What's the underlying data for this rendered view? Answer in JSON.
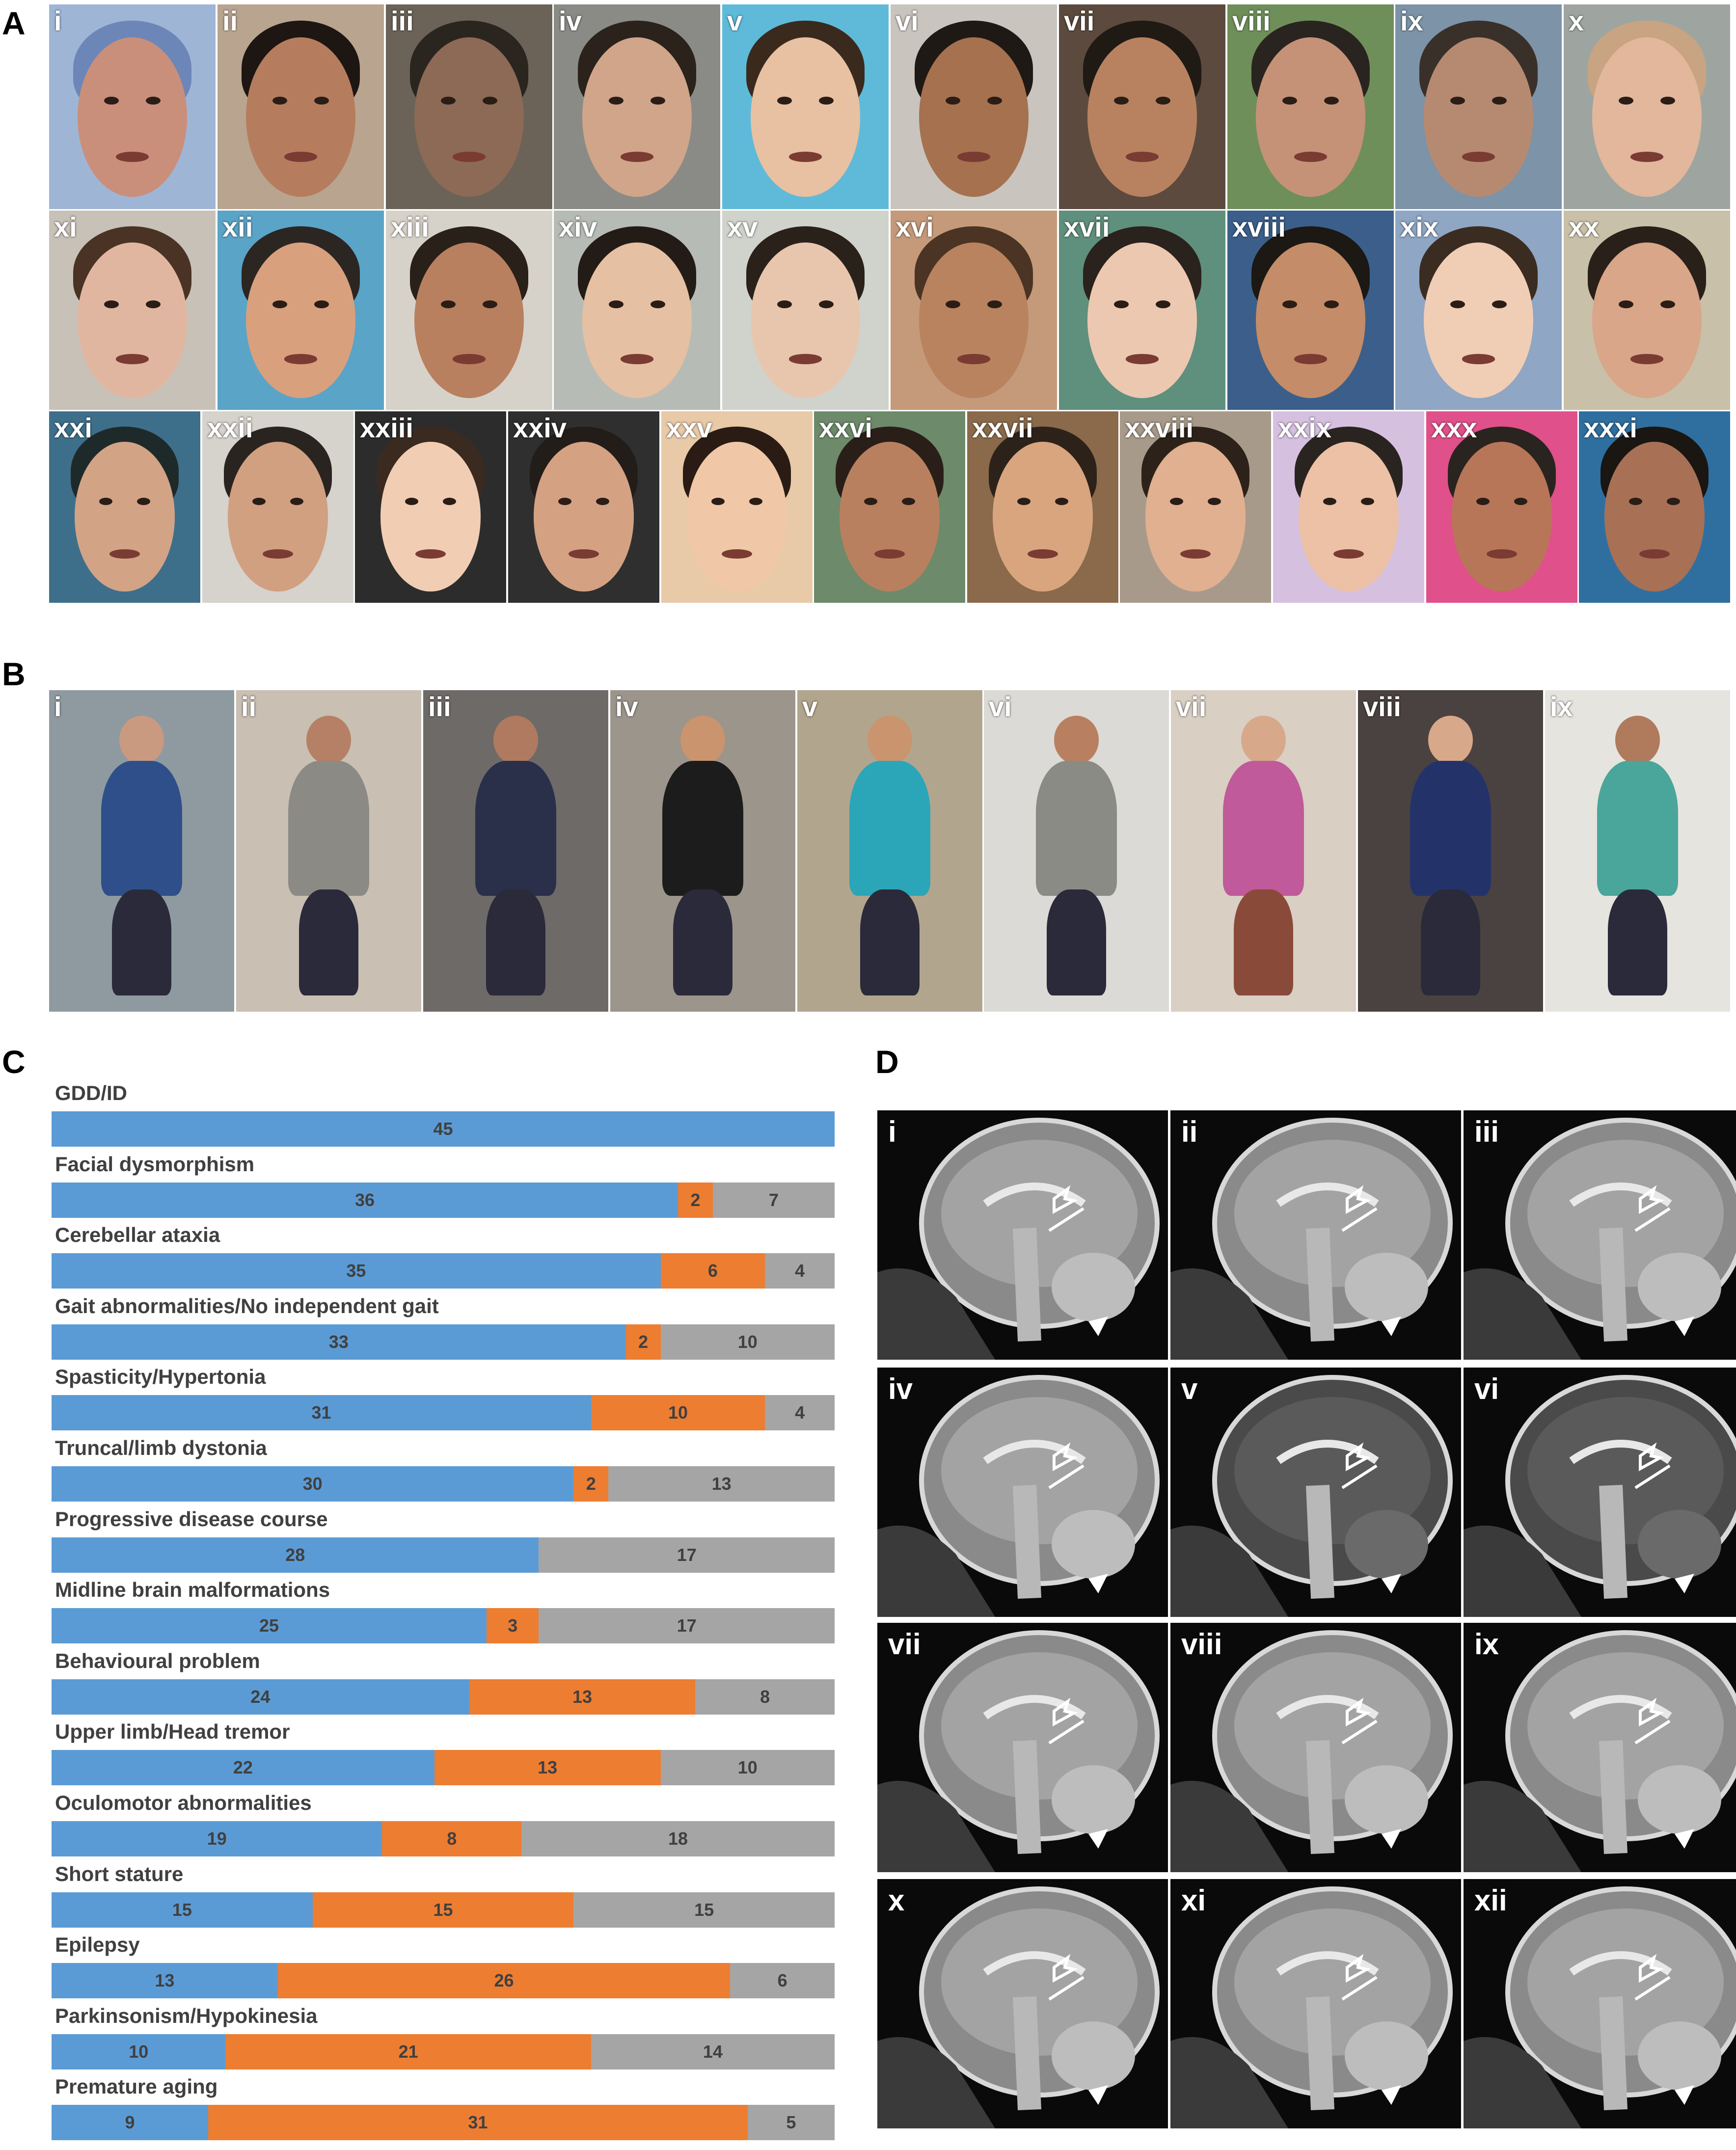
{
  "panels": {
    "a": "A",
    "b": "B",
    "c": "C",
    "d": "D"
  },
  "panel_a": {
    "labels": [
      "i",
      "ii",
      "iii",
      "iv",
      "v",
      "vi",
      "vii",
      "viii",
      "ix",
      "x",
      "xi",
      "xii",
      "xiii",
      "xiv",
      "xv",
      "xvi",
      "xvii",
      "xviii",
      "xix",
      "xx",
      "xxi",
      "xxii",
      "xxiii",
      "xxiv",
      "xxv",
      "xxvi",
      "xxvii",
      "xxviii",
      "xxix",
      "xxx",
      "xxxi"
    ]
  },
  "panel_b": {
    "labels": [
      "i",
      "ii",
      "iii",
      "iv",
      "v",
      "vi",
      "vii",
      "viii",
      "ix"
    ]
  },
  "panel_d": {
    "labels": [
      "i",
      "ii",
      "iii",
      "iv",
      "v",
      "vi",
      "vii",
      "viii",
      "ix",
      "x",
      "xi",
      "xii"
    ]
  },
  "chart_data": {
    "type": "bar",
    "stacked": true,
    "orientation": "horizontal",
    "colors": [
      "#5b9bd5",
      "#ed7d31",
      "#a5a5a5"
    ],
    "categories": [
      "GDD/ID",
      "Facial dysmorphism",
      "Cerebellar ataxia",
      "Gait abnormalities/No independent gait",
      "Spasticity/Hypertonia",
      "Truncal/limb dystonia",
      "Progressive disease course",
      "Midline brain malformations",
      "Behavioural problem",
      "Upper limb/Head tremor",
      "Oculomotor abnormalities",
      "Short stature",
      "Epilepsy",
      "Parkinsonism/Hypokinesia",
      "Premature aging"
    ],
    "series": [
      {
        "values": [
          45,
          36,
          35,
          33,
          31,
          30,
          28,
          25,
          24,
          22,
          19,
          15,
          13,
          10,
          9
        ]
      },
      {
        "values": [
          0,
          2,
          6,
          2,
          10,
          2,
          0,
          3,
          13,
          13,
          8,
          15,
          26,
          21,
          31
        ]
      },
      {
        "values": [
          0,
          7,
          4,
          10,
          4,
          13,
          17,
          17,
          8,
          10,
          18,
          15,
          6,
          14,
          5
        ]
      }
    ]
  }
}
